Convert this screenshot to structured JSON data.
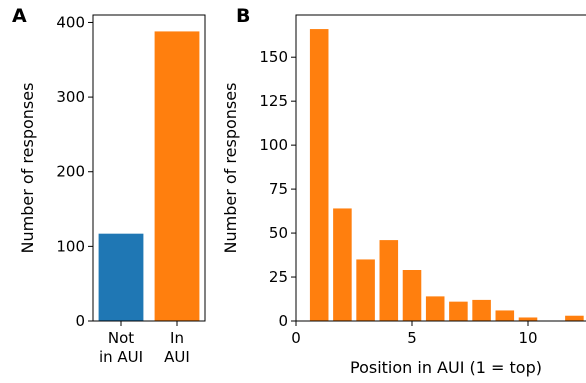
{
  "chart_data": [
    {
      "type": "bar",
      "panel_label": "A",
      "categories": [
        [
          "Not",
          "in AUI"
        ],
        [
          "In",
          "AUI"
        ]
      ],
      "values": [
        117,
        388
      ],
      "colors": [
        "#1f77b4",
        "#ff7f0e"
      ],
      "xlabel": "",
      "ylabel": "Number of responses",
      "ylim": [
        0,
        410
      ],
      "yticks": [
        0,
        100,
        200,
        300,
        400
      ],
      "grid": false
    },
    {
      "type": "bar",
      "panel_label": "B",
      "x": [
        1,
        2,
        3,
        4,
        5,
        6,
        7,
        8,
        9,
        10,
        12
      ],
      "values": [
        166,
        64,
        35,
        46,
        29,
        14,
        11,
        12,
        6,
        2,
        3
      ],
      "color": "#ff7f0e",
      "xlabel": "Position in AUI (1 = top)",
      "ylabel": "Number of responses",
      "xlim": [
        0,
        12.5
      ],
      "ylim": [
        0,
        174
      ],
      "xticks": [
        0,
        5,
        10
      ],
      "yticks": [
        0,
        25,
        50,
        75,
        100,
        125,
        150
      ],
      "grid": false
    }
  ]
}
